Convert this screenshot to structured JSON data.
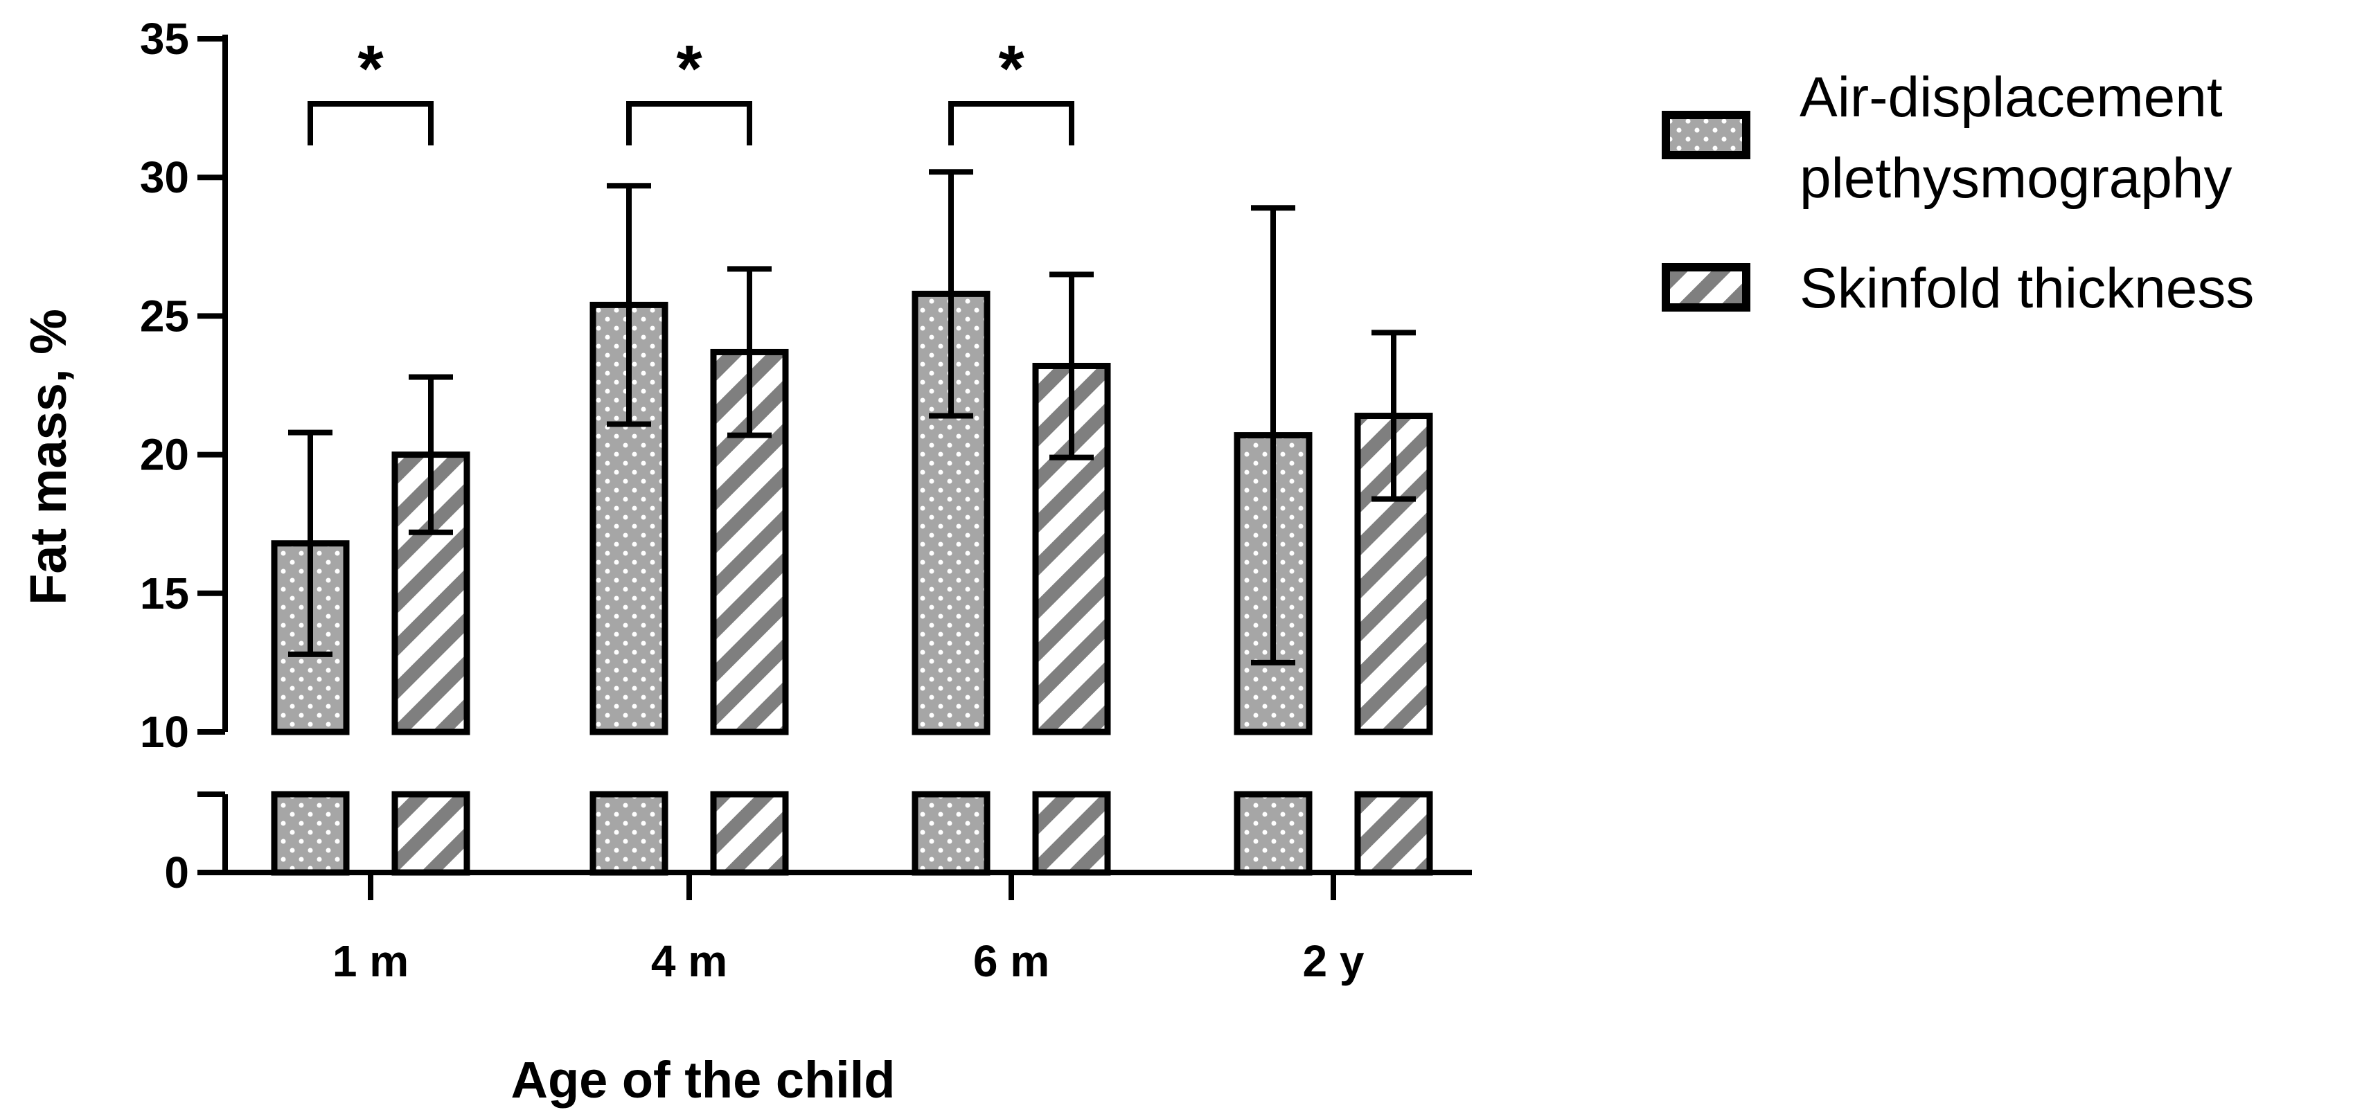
{
  "chart_data": {
    "type": "bar",
    "title": "",
    "xlabel": "Age of the child",
    "ylabel": "Fat mass, %",
    "ylim": [
      0,
      35
    ],
    "axis_break": [
      10,
      10
    ],
    "y_ticks": [
      "0",
      "10",
      "15",
      "20",
      "25",
      "30",
      "35"
    ],
    "categories": [
      "1 m",
      "4 m",
      "6 m",
      "2 y"
    ],
    "series": [
      {
        "name": "Air-displacement plethysmography",
        "pattern": "dots",
        "values": [
          16.8,
          25.4,
          25.8,
          20.7
        ],
        "error_low": [
          12.8,
          21.1,
          21.4,
          12.5
        ],
        "error_high": [
          20.8,
          29.7,
          30.2,
          28.9
        ]
      },
      {
        "name": "Skinfold thickness",
        "pattern": "hatch",
        "values": [
          20.0,
          23.7,
          23.2,
          21.4
        ],
        "error_low": [
          17.2,
          20.7,
          19.9,
          18.4
        ],
        "error_high": [
          22.8,
          26.7,
          26.5,
          24.4
        ]
      }
    ],
    "annotations": [
      {
        "category": "1 m",
        "text": "*"
      },
      {
        "category": "4 m",
        "text": "*"
      },
      {
        "category": "6 m",
        "text": "*"
      }
    ],
    "legend_position": "top-right",
    "colors": {
      "bar_fill": "#a6a6a6",
      "hatch": "#7f7f7f",
      "dot": "#ffffff",
      "stroke": "#000000"
    }
  }
}
